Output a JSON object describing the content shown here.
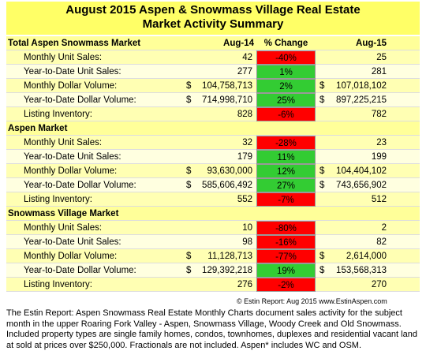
{
  "header": {
    "title": "August 2015 Aspen & Snowmass Village Real Estate",
    "subtitle": "Market Activity Summary"
  },
  "table": {
    "columns": [
      "Aug-14",
      "% Change",
      "Aug-15"
    ],
    "currency_symbol": "$",
    "sections": [
      {
        "name": "Total Aspen Snowmass Market",
        "rows": [
          {
            "label": "Monthly Unit Sales:",
            "aug14": "42",
            "change": "-40%",
            "aug15": "25",
            "dollar": false
          },
          {
            "label": "Year-to-Date Unit Sales:",
            "aug14": "277",
            "change": "1%",
            "aug15": "281",
            "dollar": false
          },
          {
            "label": "Monthly Dollar Volume:",
            "aug14": "104,758,713",
            "change": "2%",
            "aug15": "107,018,102",
            "dollar": true
          },
          {
            "label": "Year-to-Date Dollar Volume:",
            "aug14": "714,998,710",
            "change": "25%",
            "aug15": "897,225,215",
            "dollar": true
          },
          {
            "label": "Listing Inventory:",
            "aug14": "828",
            "change": "-6%",
            "aug15": "782",
            "dollar": false
          }
        ]
      },
      {
        "name": "Aspen Market",
        "rows": [
          {
            "label": "Monthly Unit Sales:",
            "aug14": "32",
            "change": "-28%",
            "aug15": "23",
            "dollar": false
          },
          {
            "label": "Year-to-Date Unit Sales:",
            "aug14": "179",
            "change": "11%",
            "aug15": "199",
            "dollar": false
          },
          {
            "label": "Monthly Dollar Volume:",
            "aug14": "93,630,000",
            "change": "12%",
            "aug15": "104,404,102",
            "dollar": true
          },
          {
            "label": "Year-to-Date Dollar Volume:",
            "aug14": "585,606,492",
            "change": "27%",
            "aug15": "743,656,902",
            "dollar": true
          },
          {
            "label": "Listing Inventory:",
            "aug14": "552",
            "change": "-7%",
            "aug15": "512",
            "dollar": false
          }
        ]
      },
      {
        "name": "Snowmass Village Market",
        "rows": [
          {
            "label": "Monthly Unit Sales:",
            "aug14": "10",
            "change": "-80%",
            "aug15": "2",
            "dollar": false
          },
          {
            "label": "Year-to-Date Unit Sales:",
            "aug14": "98",
            "change": "-16%",
            "aug15": "82",
            "dollar": false
          },
          {
            "label": "Monthly Dollar Volume:",
            "aug14": "11,128,713",
            "change": "-77%",
            "aug15": "2,614,000",
            "dollar": true
          },
          {
            "label": "Year-to-Date Dollar Volume:",
            "aug14": "129,392,218",
            "change": "19%",
            "aug15": "153,568,313",
            "dollar": true
          },
          {
            "label": "Listing Inventory:",
            "aug14": "276",
            "change": "-2%",
            "aug15": "270",
            "dollar": false
          }
        ]
      }
    ]
  },
  "footer": {
    "credit": "© Estin Report: Aug 2015 www.EstinAspen.com",
    "note": "The Estin Report: Aspen Snowmass Real Estate Monthly Charts document sales activity for the subject month in the upper Roaring Fork Valley - Aspen, Snowmass Village, Woody Creek and Old Snowmass. Included property types are single family homes, condos, townhomes, duplexes and residential vacant land at sold at prices over $250,000. Fractionals are not included. Aspen* includes WC and OSM."
  }
}
